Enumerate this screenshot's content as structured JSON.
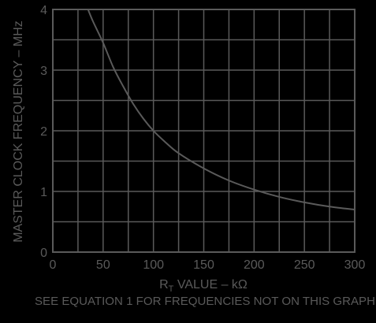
{
  "chart_data": {
    "type": "line",
    "ylabel": "MASTER CLOCK FREQUENCY – MHz",
    "xlabel_main": "R",
    "xlabel_sub": "T",
    "xlabel_rest": " VALUE – kΩ",
    "note": "SEE EQUATION 1 FOR FREQUENCIES NOT ON THIS GRAPH",
    "xlim": [
      0,
      300
    ],
    "ylim": [
      0,
      4
    ],
    "x_ticks": [
      "0",
      "50",
      "100",
      "150",
      "200",
      "250",
      "300"
    ],
    "y_ticks": [
      "0",
      "1",
      "2",
      "3",
      "4"
    ],
    "grid": true,
    "series": [
      {
        "x": [
          35,
          40,
          50,
          60,
          70,
          80,
          90,
          100,
          110,
          125,
          150,
          175,
          200,
          225,
          250,
          275,
          300
        ],
        "values": [
          4.0,
          3.8,
          3.45,
          3.05,
          2.73,
          2.44,
          2.2,
          2.0,
          1.84,
          1.63,
          1.38,
          1.18,
          1.03,
          0.91,
          0.82,
          0.75,
          0.7
        ]
      }
    ]
  },
  "colors": {
    "background": "#000000",
    "grid": "#5a5a5a",
    "curve": "#5a5a5a",
    "text": "#5a5a5a"
  }
}
